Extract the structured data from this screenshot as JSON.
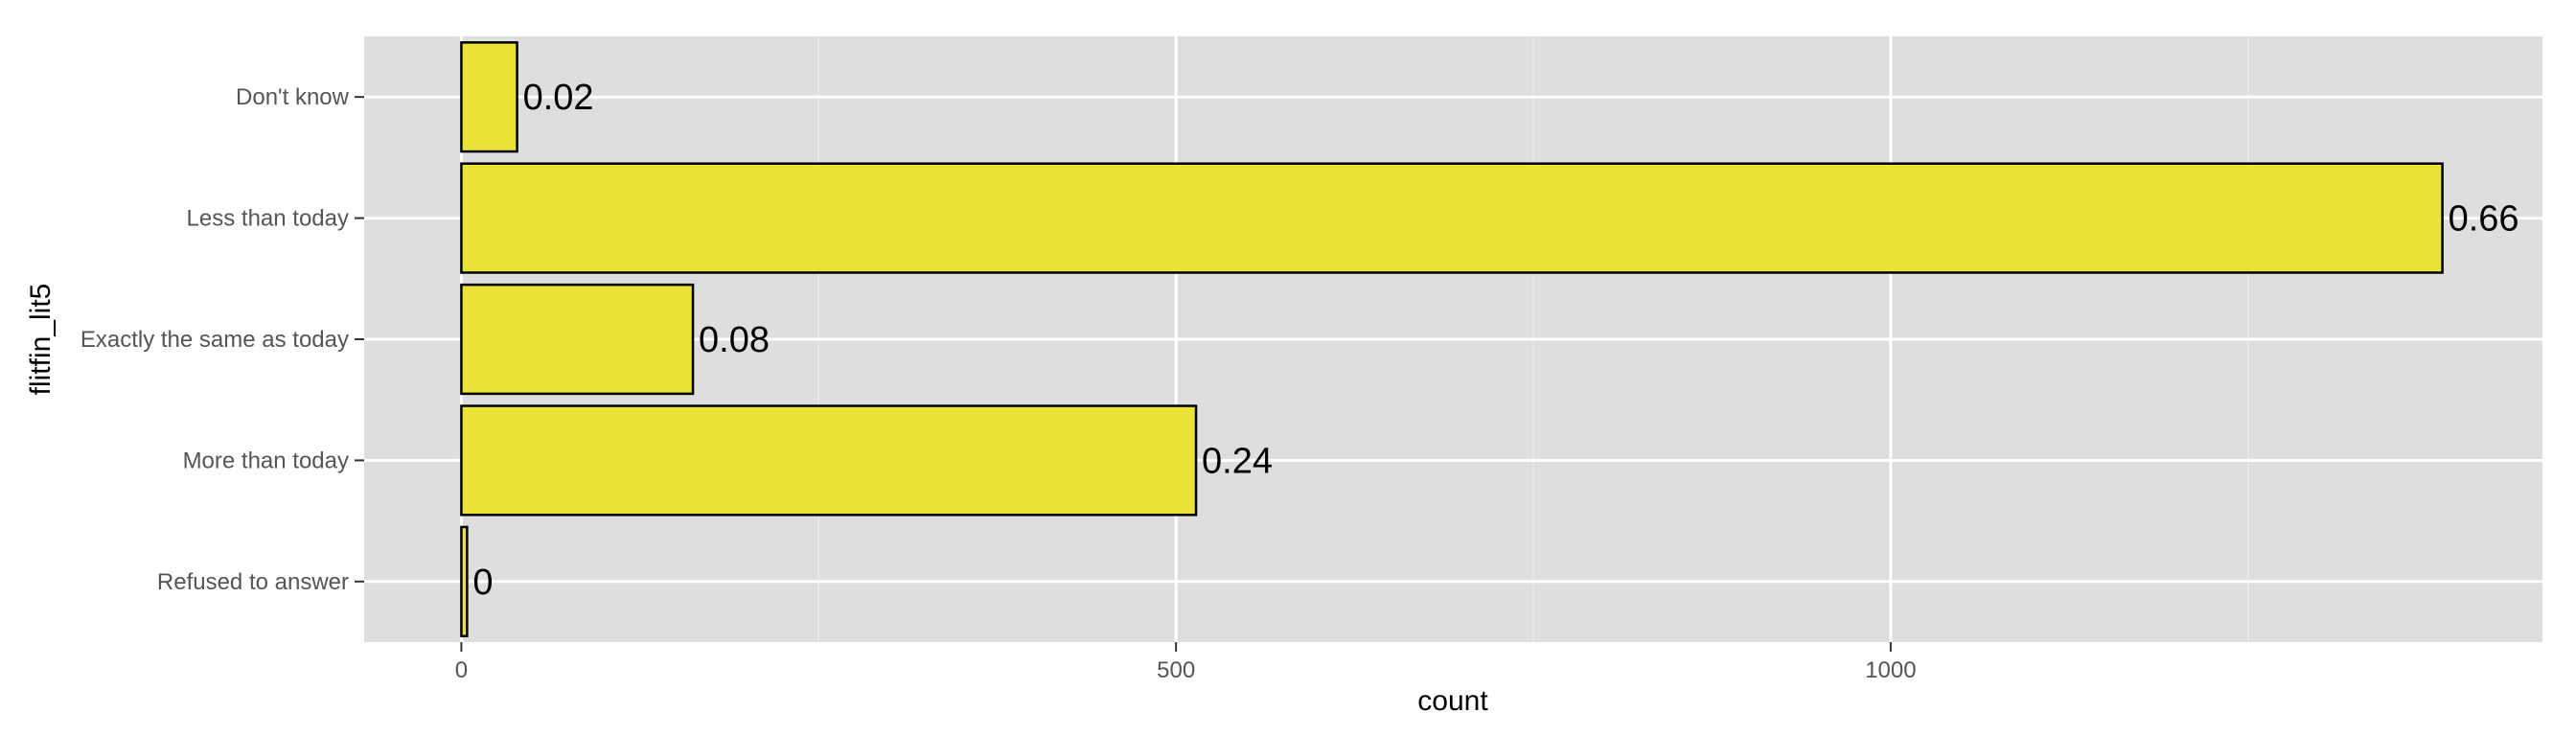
{
  "chart_data": {
    "type": "bar",
    "orientation": "horizontal",
    "categories": [
      "Don't know",
      "Less than today",
      "Exactly the same as today",
      "More than today",
      "Refused to answer"
    ],
    "values": [
      39,
      1386,
      162,
      514,
      4
    ],
    "data_labels": [
      "0.02",
      "0.66",
      "0.08",
      "0.24",
      "0"
    ],
    "xlabel": "count",
    "ylabel": "flitfin_lit5",
    "xlim": [
      -68,
      1456
    ],
    "xticks": [
      0,
      500,
      1000
    ],
    "xtick_labels": [
      "0",
      "500",
      "1000"
    ],
    "minor_xticks": [
      250,
      750,
      1250
    ],
    "grid": true,
    "legend": "none"
  },
  "colors": {
    "panel_background": "#DEDEDE",
    "grid_major": "#FFFFFF",
    "grid_minor": "#EBEBEB",
    "bar_fill": "#EBE237",
    "bar_stroke": "#000000",
    "tick_label": "#555555",
    "text": "#000000"
  }
}
